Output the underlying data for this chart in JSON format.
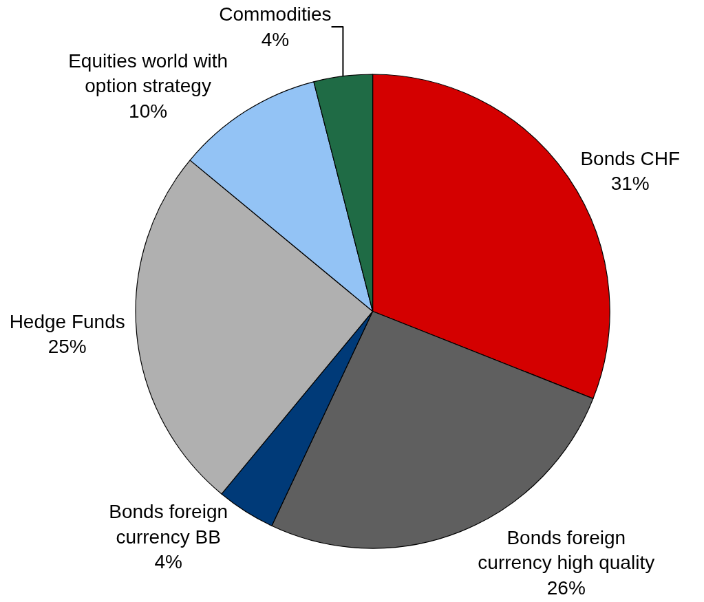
{
  "chart_data": {
    "type": "pie",
    "categories": [
      "Bonds CHF",
      "Bonds foreign\ncurrency high quality",
      "Bonds foreign\ncurrency BB",
      "Hedge Funds",
      "Equities world with\noption strategy",
      "Commodities"
    ],
    "values": [
      31,
      26,
      4,
      25,
      10,
      4
    ],
    "value_labels": [
      "31%",
      "26%",
      "4%",
      "25%",
      "10%",
      "4%"
    ],
    "colors": [
      "#d40000",
      "#5f5f5f",
      "#003a78",
      "#b0b0b0",
      "#93c3f5",
      "#1f6b45"
    ],
    "legend": false
  }
}
